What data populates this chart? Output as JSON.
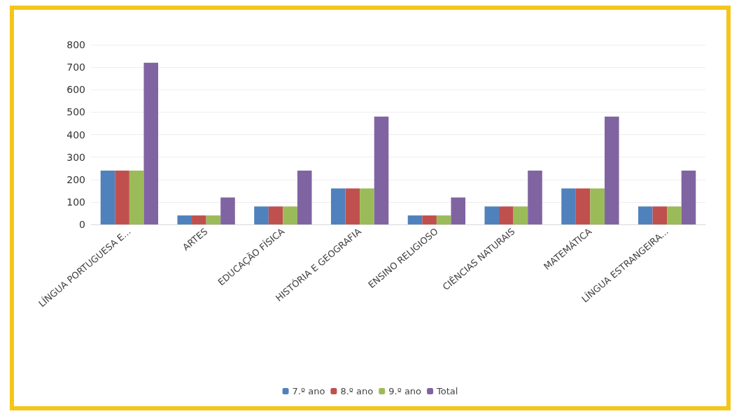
{
  "chart_data": {
    "type": "bar",
    "categories": [
      "LÍNGUA PORTUGUESA E...",
      "ARTES",
      "EDUCAÇÃO FÍSICA",
      "HISTÓRIA E GEOGRAFIA",
      "ENSINO RELIGIOSO",
      "CIÊNCIAS NATURAIS",
      "MATEMÁTICA",
      "LÍNGUA ESTRANGEIRA..."
    ],
    "series": [
      {
        "name": "7.º ano",
        "color": "#4f81bd",
        "values": [
          240,
          40,
          80,
          160,
          40,
          80,
          160,
          80
        ]
      },
      {
        "name": "8.º ano",
        "color": "#c0504d",
        "values": [
          240,
          40,
          80,
          160,
          40,
          80,
          160,
          80
        ]
      },
      {
        "name": "9.º ano",
        "color": "#9bbb59",
        "values": [
          240,
          40,
          80,
          160,
          40,
          80,
          160,
          80
        ]
      },
      {
        "name": "Total",
        "color": "#8064a2",
        "values": [
          720,
          120,
          240,
          480,
          120,
          240,
          480,
          240
        ]
      }
    ],
    "ylim": [
      0,
      800
    ],
    "yticks": [
      0,
      100,
      200,
      300,
      400,
      500,
      600,
      700,
      800
    ],
    "grid": "y",
    "legend": "bottom"
  }
}
